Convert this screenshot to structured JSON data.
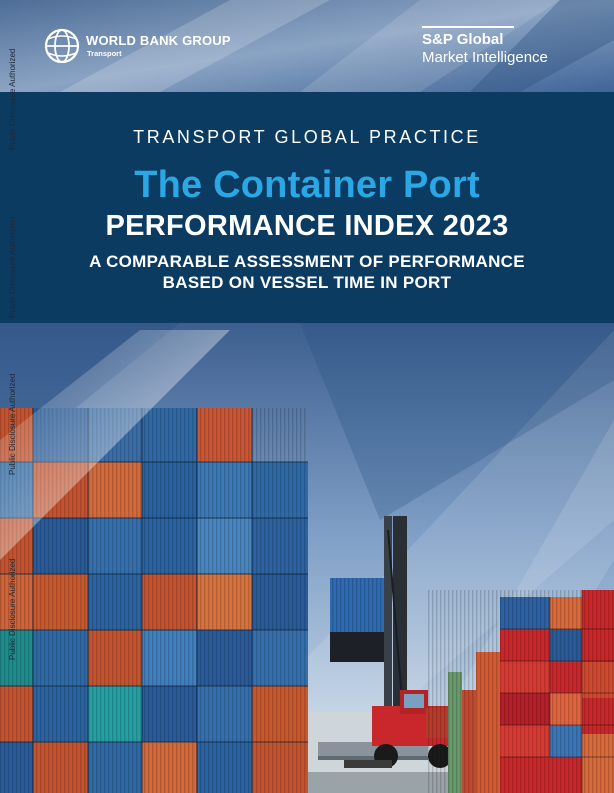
{
  "publisher": {
    "name": "WORLD BANK GROUP",
    "unit": "Transport"
  },
  "partner": {
    "name": "S&P Global",
    "unit": "Market Intelligence"
  },
  "cover": {
    "practice": "TRANSPORT GLOBAL PRACTICE",
    "title": "The Container Port",
    "subtitle": "PERFORMANCE INDEX 2023",
    "tagline_line1": "A COMPARABLE ASSESSMENT OF PERFORMANCE",
    "tagline_line2": "BASED ON VESSEL TIME IN PORT"
  },
  "watermark": {
    "text": "Public Disclosure Authorized"
  },
  "colors": {
    "band": "#0c3b62",
    "title_accent": "#2aa7e5",
    "text": "#ffffff"
  }
}
